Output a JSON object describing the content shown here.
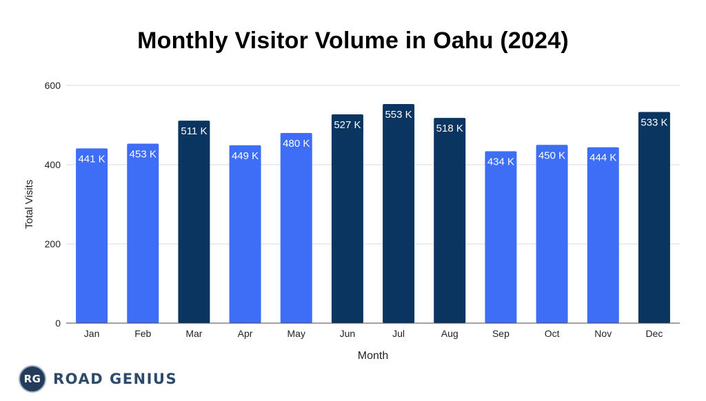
{
  "chart_data": {
    "type": "bar",
    "title": "Monthly Visitor Volume in Oahu (2024)",
    "xlabel": "Month",
    "ylabel": "Total Visits",
    "ylim": [
      0,
      600
    ],
    "yticks": [
      0,
      200,
      400,
      600
    ],
    "grid": true,
    "categories": [
      "Jan",
      "Feb",
      "Mar",
      "Apr",
      "May",
      "Jun",
      "Jul",
      "Aug",
      "Sep",
      "Oct",
      "Nov",
      "Dec"
    ],
    "values": [
      441,
      453,
      511,
      449,
      480,
      527,
      553,
      518,
      434,
      450,
      444,
      533
    ],
    "data_labels": [
      "441 K",
      "453 K",
      "511 K",
      "449 K",
      "480 K",
      "527 K",
      "553 K",
      "518 K",
      "434 K",
      "450 K",
      "444 K",
      "533 K"
    ],
    "highlighted": [
      false,
      false,
      true,
      false,
      false,
      true,
      true,
      true,
      false,
      false,
      false,
      true
    ],
    "colors": {
      "bar": "#3d6ef5",
      "bar_highlight": "#0a3560",
      "grid": "#d9d9d9",
      "axis": "#444444",
      "label_text": "#ffffff"
    }
  },
  "brand": {
    "badge": "RG",
    "name": "ROAD GENIUS"
  }
}
